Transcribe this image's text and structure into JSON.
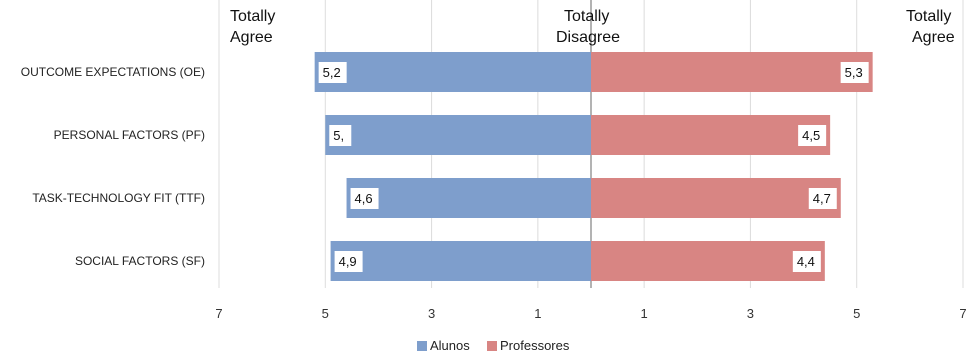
{
  "chart_data": {
    "type": "bar",
    "orientation": "horizontal-diverging",
    "categories": [
      "OUTCOME EXPECTATIONS (OE)",
      "PERSONAL FACTORS (PF)",
      "TASK-TECHNOLOGY FIT  (TTF)",
      "SOCIAL FACTORS (SF)"
    ],
    "series": [
      {
        "name": "Alunos",
        "values": [
          5.2,
          5.0,
          4.6,
          4.9
        ],
        "labels": [
          "5,2",
          "5,",
          "4,6",
          "4,9"
        ],
        "color": "#7e9ecc",
        "side": "left"
      },
      {
        "name": "Professores",
        "values": [
          5.3,
          4.5,
          4.7,
          4.4
        ],
        "labels": [
          "5,3",
          "4,5",
          "4,7",
          "4,4"
        ],
        "color": "#d88583",
        "side": "right"
      }
    ],
    "xlim": [
      0,
      7
    ],
    "ticks": [
      "7",
      "5",
      "3",
      "1",
      "1",
      "3",
      "5",
      "7"
    ],
    "tick_values": [
      -7,
      -5,
      -3,
      -1,
      1,
      3,
      5,
      7
    ],
    "grid": true,
    "legend_position": "bottom",
    "headers": {
      "left": [
        "Totally",
        "Agree"
      ],
      "center": [
        "Totally",
        "Disagree"
      ],
      "right": [
        "Totally",
        "Agree"
      ]
    }
  }
}
